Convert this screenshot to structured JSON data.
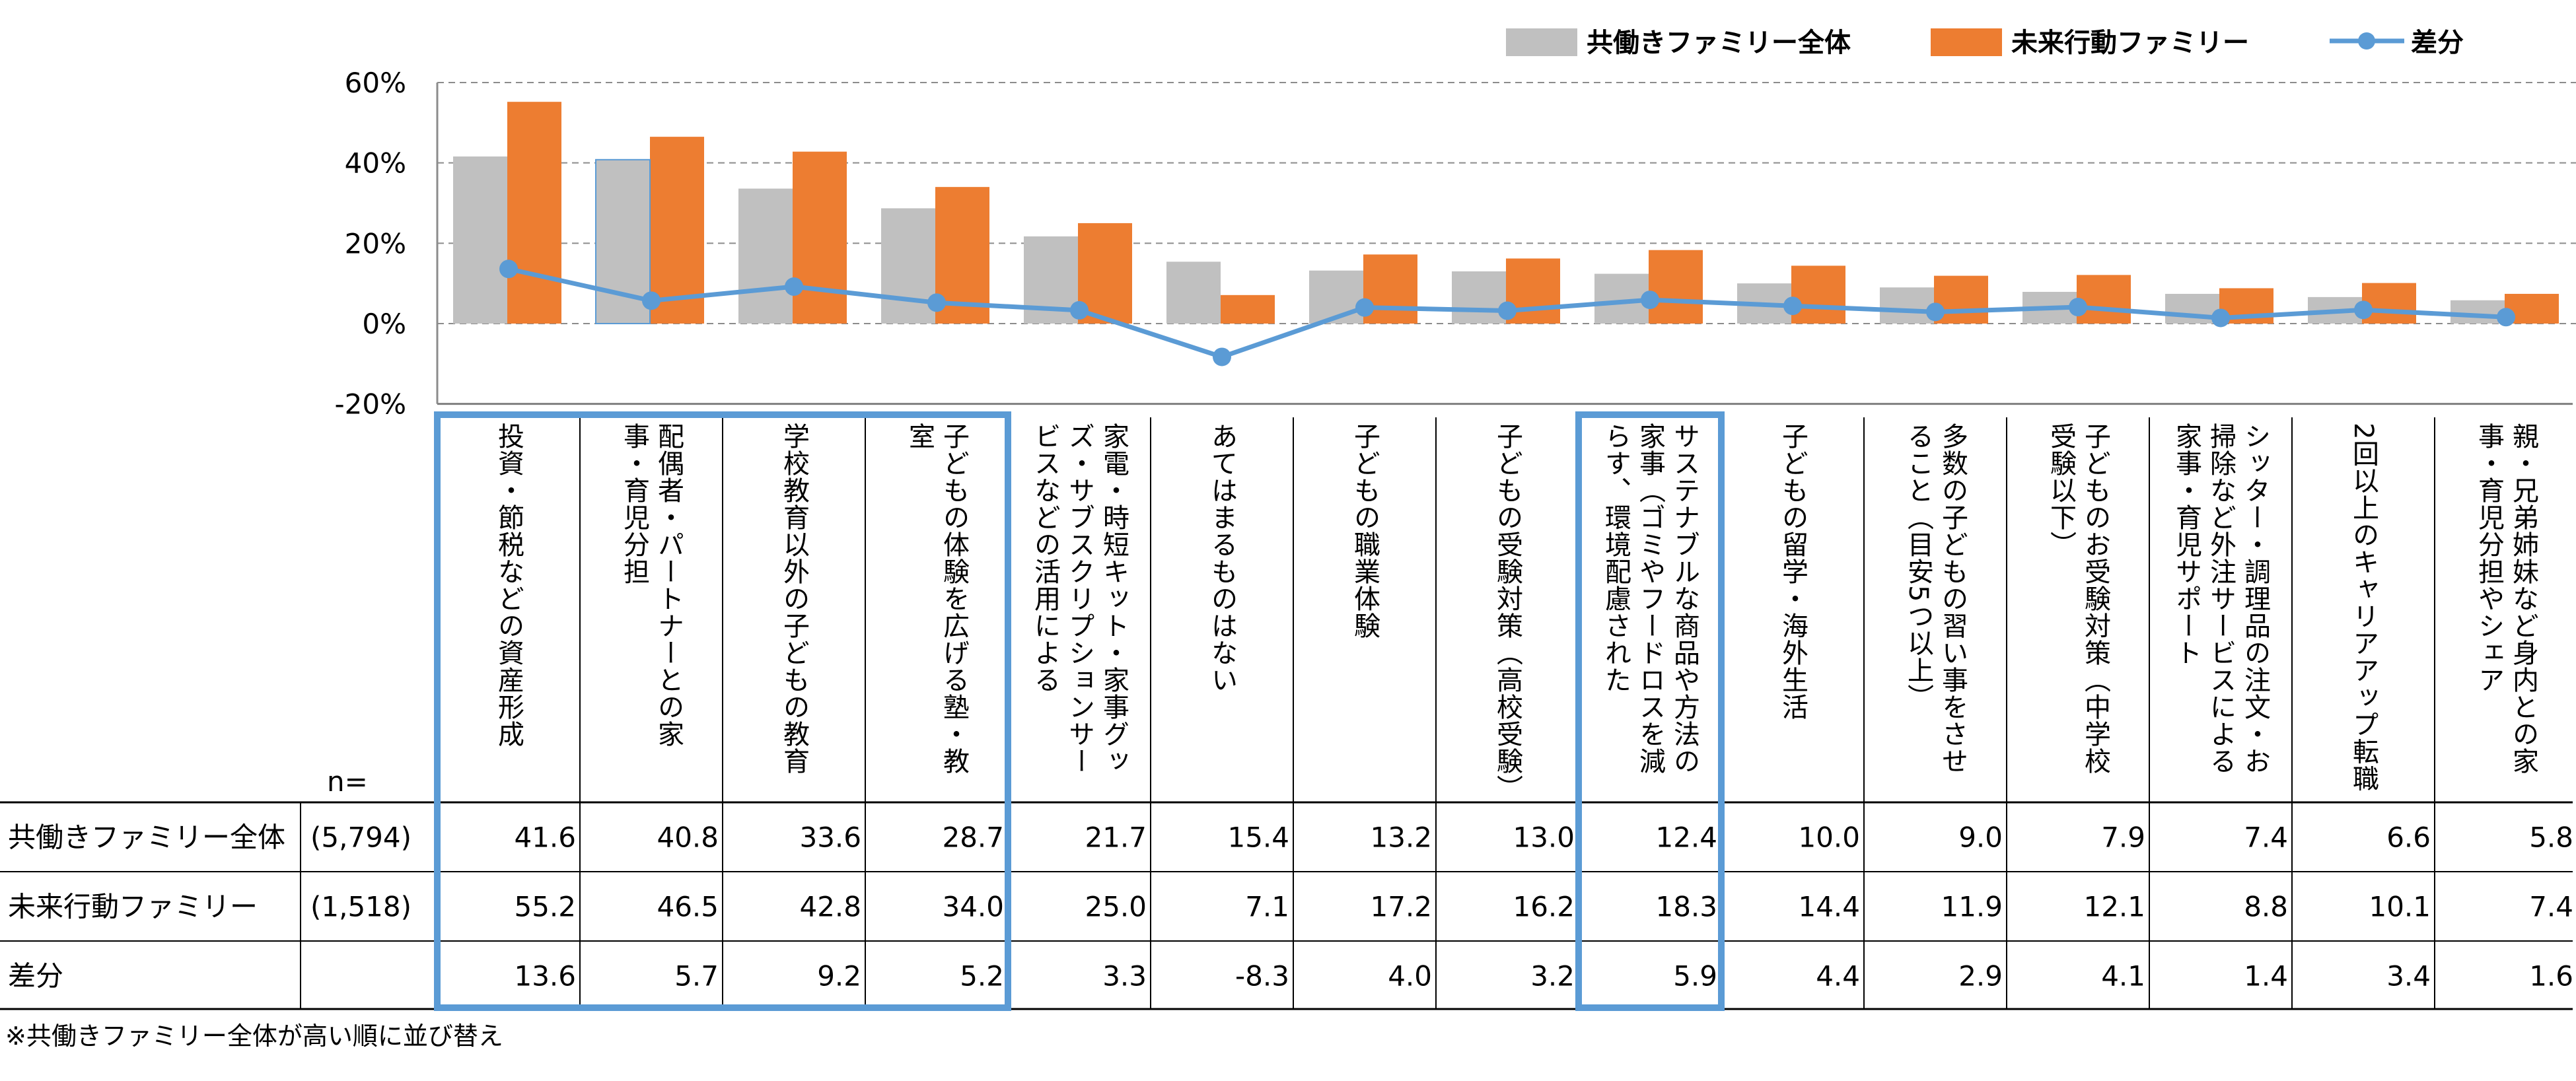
{
  "chart_data": {
    "type": "bar",
    "legend": [
      "共働きファミリー全体",
      "未来行動ファミリー",
      "差分"
    ],
    "y_ticks": [
      "60%",
      "40%",
      "20%",
      "0%",
      "-20%"
    ],
    "ylim": [
      -20,
      60
    ],
    "categories": [
      "投資・節税などの資産形成",
      "配偶者・パートナーとの家事・育児分担",
      "学校教育以外の子どもの教育",
      "子どもの体験を広げる塾・教室",
      "家電・時短キット・家事グッズ・サブスクリプションサービスなどの活用による",
      "あてはまるものはない",
      "子どもの職業体験",
      "子どもの受験対策（高校受験）",
      "サステナブルな商品や方法の家事（ゴミやフードロスを減らす、環境配慮された",
      "子どもの留学・海外生活",
      "多数の子どもの習い事をさせること（目安5つ以上）",
      "子どものお受験対策（中学校受験以下）",
      "シッター・調理品の注文・お掃除など外注サービスによる家事・育児サポート",
      "2回以上のキャリアアップ転職",
      "親・兄弟姉妹など身内との家事・育児分担やシェア"
    ],
    "series": [
      {
        "name": "共働きファミリー全体",
        "n": "(5,794)",
        "color": "#c0c0c0",
        "values": [
          41.6,
          40.8,
          33.6,
          28.7,
          21.7,
          15.4,
          13.2,
          13.0,
          12.4,
          10.0,
          9.0,
          7.9,
          7.4,
          6.6,
          5.8
        ],
        "labels": [
          "41.6",
          "40.8",
          "33.6",
          "28.7",
          "21.7",
          "15.4",
          "13.2",
          "13.0",
          "12.4",
          "10.0",
          "9.0",
          "7.9",
          "7.4",
          "6.6",
          "5.8"
        ]
      },
      {
        "name": "未来行動ファミリー",
        "n": "(1,518)",
        "color": "#ed7d31",
        "values": [
          55.2,
          46.5,
          42.8,
          34.0,
          25.0,
          7.1,
          17.2,
          16.2,
          18.3,
          14.4,
          11.9,
          12.1,
          8.8,
          10.1,
          7.4
        ],
        "labels": [
          "55.2",
          "46.5",
          "42.8",
          "34.0",
          "25.0",
          "7.1",
          "17.2",
          "16.2",
          "18.3",
          "14.4",
          "11.9",
          "12.1",
          "8.8",
          "10.1",
          "7.4"
        ]
      },
      {
        "name": "差分",
        "n": "",
        "color": "#5b9bd5",
        "values": [
          13.6,
          5.7,
          9.2,
          5.2,
          3.3,
          -8.3,
          4.0,
          3.2,
          5.9,
          4.4,
          2.9,
          4.1,
          1.4,
          3.4,
          1.6
        ],
        "labels": [
          "13.6",
          "5.7",
          "9.2",
          "5.2",
          "3.3",
          "-8.3",
          "4.0",
          "3.2",
          "5.9",
          "4.4",
          "2.9",
          "4.1",
          "1.4",
          "3.4",
          "1.6"
        ]
      }
    ],
    "n_label": "n=",
    "highlight_color": "#5b9bd5",
    "highlight_groups": [
      [
        0,
        3
      ],
      [
        8,
        8
      ]
    ],
    "footnote": "※共働きファミリー全体が高い順に並び替え"
  }
}
